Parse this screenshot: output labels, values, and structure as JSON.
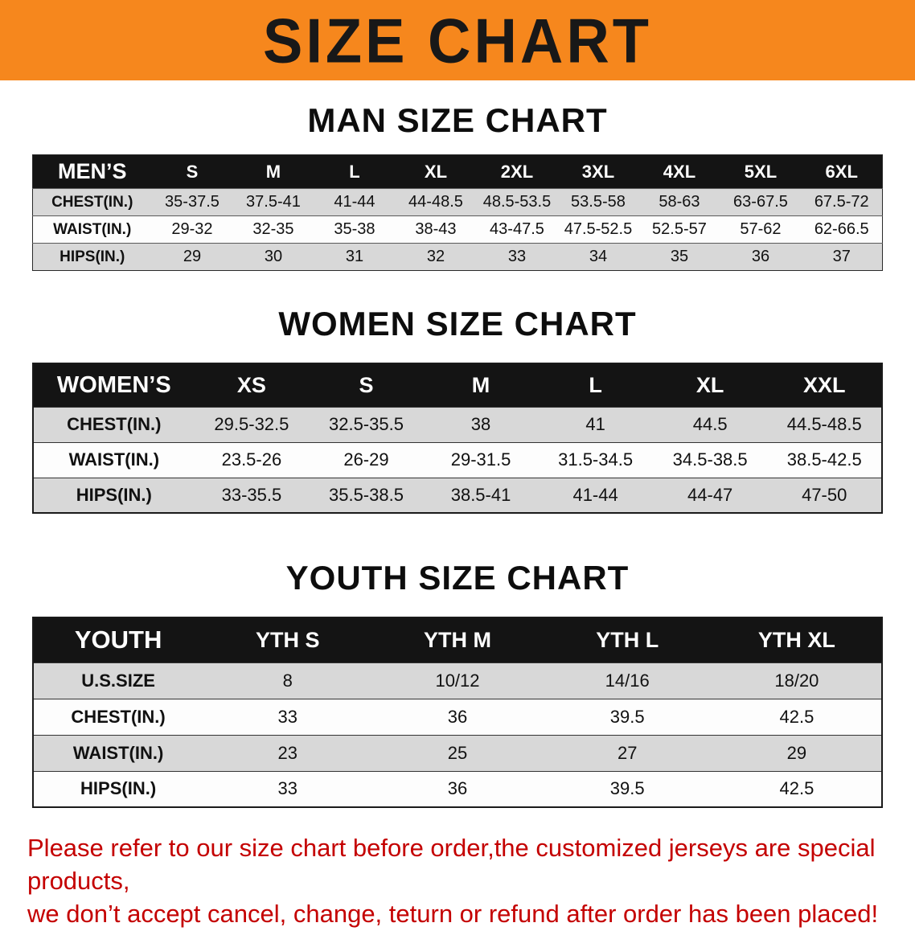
{
  "banner": {
    "title": "SIZE CHART"
  },
  "colors": {
    "banner_bg": "#F6871D",
    "banner_fg": "#181818",
    "table_header_bg": "#141414",
    "row_shade": "#D8D8D8",
    "footer_red": "#C40000"
  },
  "sections": [
    {
      "heading": "MAN SIZE CHART",
      "table": {
        "header": [
          "MEN’S",
          "S",
          "M",
          "L",
          "XL",
          "2XL",
          "3XL",
          "4XL",
          "5XL",
          "6XL"
        ],
        "rows": [
          [
            "CHEST(IN.)",
            "35-37.5",
            "37.5-41",
            "41-44",
            "44-48.5",
            "48.5-53.5",
            "53.5-58",
            "58-63",
            "63-67.5",
            "67.5-72"
          ],
          [
            "WAIST(IN.)",
            "29-32",
            "32-35",
            "35-38",
            "38-43",
            "43-47.5",
            "47.5-52.5",
            "52.5-57",
            "57-62",
            "62-66.5"
          ],
          [
            "HIPS(IN.)",
            "29",
            "30",
            "31",
            "32",
            "33",
            "34",
            "35",
            "36",
            "37"
          ]
        ]
      }
    },
    {
      "heading": "WOMEN SIZE CHART",
      "table": {
        "header": [
          "WOMEN’S",
          "XS",
          "S",
          "M",
          "L",
          "XL",
          "XXL"
        ],
        "rows": [
          [
            "CHEST(IN.)",
            "29.5-32.5",
            "32.5-35.5",
            "38",
            "41",
            "44.5",
            "44.5-48.5"
          ],
          [
            "WAIST(IN.)",
            "23.5-26",
            "26-29",
            "29-31.5",
            "31.5-34.5",
            "34.5-38.5",
            "38.5-42.5"
          ],
          [
            "HIPS(IN.)",
            "33-35.5",
            "35.5-38.5",
            "38.5-41",
            "41-44",
            "44-47",
            "47-50"
          ]
        ]
      }
    },
    {
      "heading": "YOUTH SIZE CHART",
      "table": {
        "header": [
          "YOUTH",
          "YTH S",
          "YTH M",
          "YTH L",
          "YTH XL"
        ],
        "rows": [
          [
            "U.S.SIZE",
            "8",
            "10/12",
            "14/16",
            "18/20"
          ],
          [
            "CHEST(IN.)",
            "33",
            "36",
            "39.5",
            "42.5"
          ],
          [
            "WAIST(IN.)",
            "23",
            "25",
            "27",
            "29"
          ],
          [
            "HIPS(IN.)",
            "33",
            "36",
            "39.5",
            "42.5"
          ]
        ]
      }
    }
  ],
  "footer": {
    "line1": "Please refer to our size chart before order,the customized jerseys are special products,",
    "line2": "we don’t accept cancel, change, teturn or refund after order has been placed!"
  }
}
